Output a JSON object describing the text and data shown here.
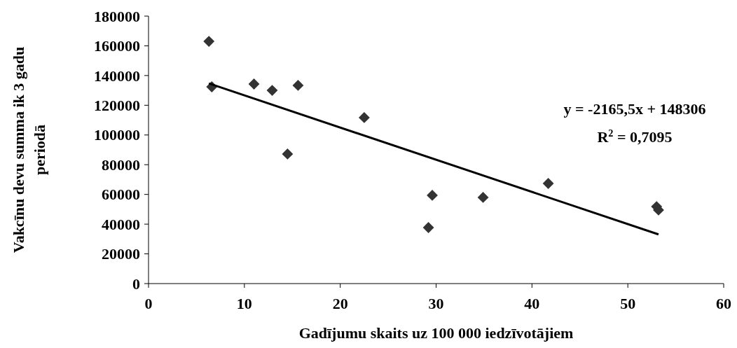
{
  "chart_data": {
    "type": "scatter",
    "xlabel": "Gadījumu skaits uz 100 000 iedzīvotājiem",
    "ylabel": "Vakcīnu devu summa ik 3 gadu periodā",
    "xlim": [
      0,
      60
    ],
    "xticks": [
      0,
      10,
      20,
      30,
      40,
      50,
      60
    ],
    "ylim": [
      0,
      180000
    ],
    "yticks": [
      0,
      20000,
      40000,
      60000,
      80000,
      100000,
      120000,
      140000,
      160000,
      180000
    ],
    "grid": false,
    "marker": "diamond",
    "annotations": [
      "y = -2165,5x + 148306",
      "R$^{2}$ = 0,7095"
    ],
    "series": [
      {
        "color": "#333333",
        "x": [
          6.3,
          6.6,
          11.0,
          12.9,
          15.6,
          14.5,
          22.5,
          29.2,
          29.6,
          34.9,
          41.7,
          53.0,
          53.2
        ],
        "values": [
          163000,
          132400,
          134300,
          130000,
          133400,
          87200,
          111700,
          37700,
          59400,
          58000,
          67400,
          51800,
          49500
        ]
      },
      {
        "type": "line",
        "marker": "none",
        "color": "#000000",
        "x": [
          6.3,
          53.2
        ],
        "values": [
          134700,
          33100
        ]
      }
    ]
  }
}
